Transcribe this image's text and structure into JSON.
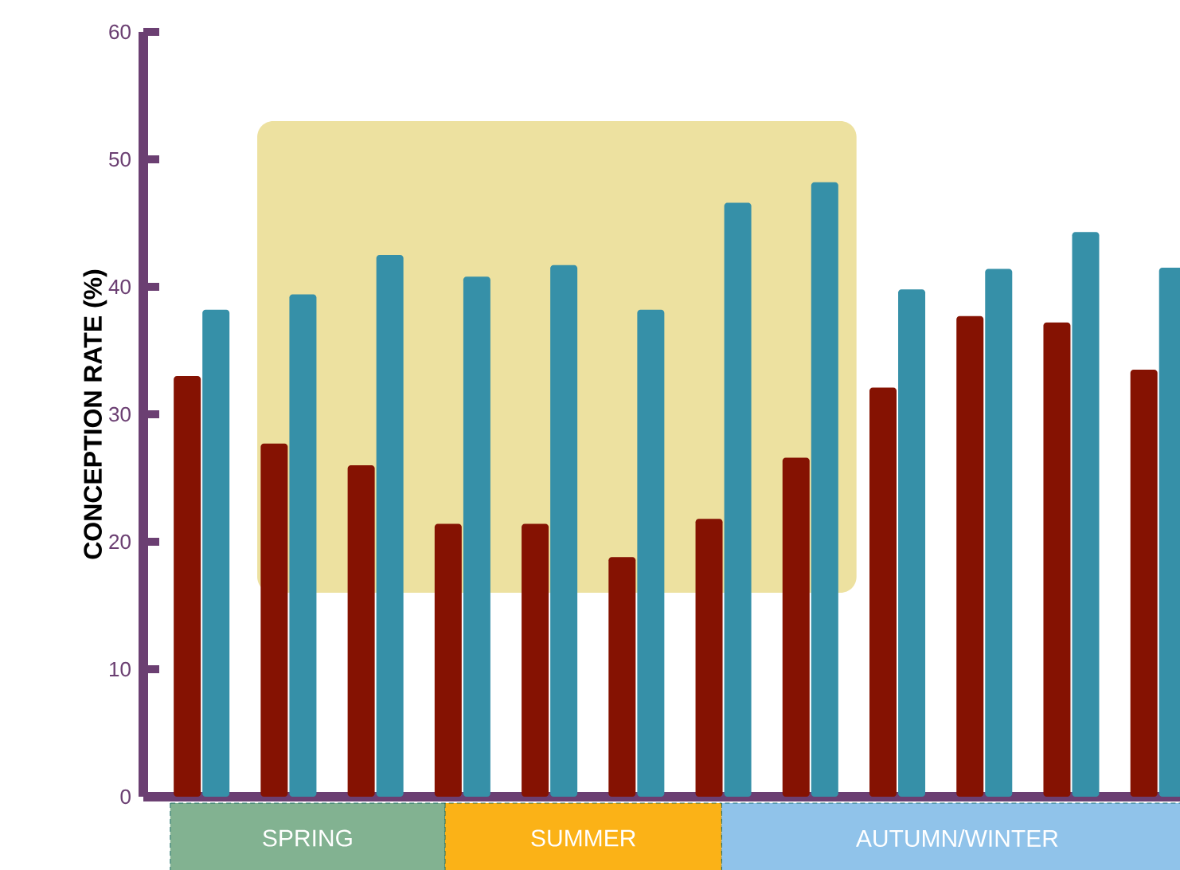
{
  "chart_data": {
    "type": "bar",
    "ylabel": "CONCEPTION RATE (%)",
    "categories": [
      null,
      null,
      null,
      null,
      null,
      null,
      null,
      null,
      null,
      null,
      null,
      null
    ],
    "series": [
      {
        "color": "#851202",
        "values": [
          33,
          27.7,
          26,
          21.4,
          21.4,
          18.8,
          21.8,
          26.6,
          32.1,
          37.7,
          37.2,
          33.5
        ]
      },
      {
        "color": "#3690a8",
        "values": [
          38.2,
          39.4,
          42.5,
          40.8,
          41.7,
          38.2,
          46.6,
          48.2,
          39.8,
          41.4,
          44.3,
          41.5
        ]
      }
    ],
    "ylim": [
      0,
      60
    ],
    "yticks": [
      0,
      10,
      20,
      30,
      40,
      50,
      60
    ],
    "grid": false,
    "annotations": [
      "SPRING",
      "SUMMER",
      "AUTUMN/WINTER"
    ]
  }
}
